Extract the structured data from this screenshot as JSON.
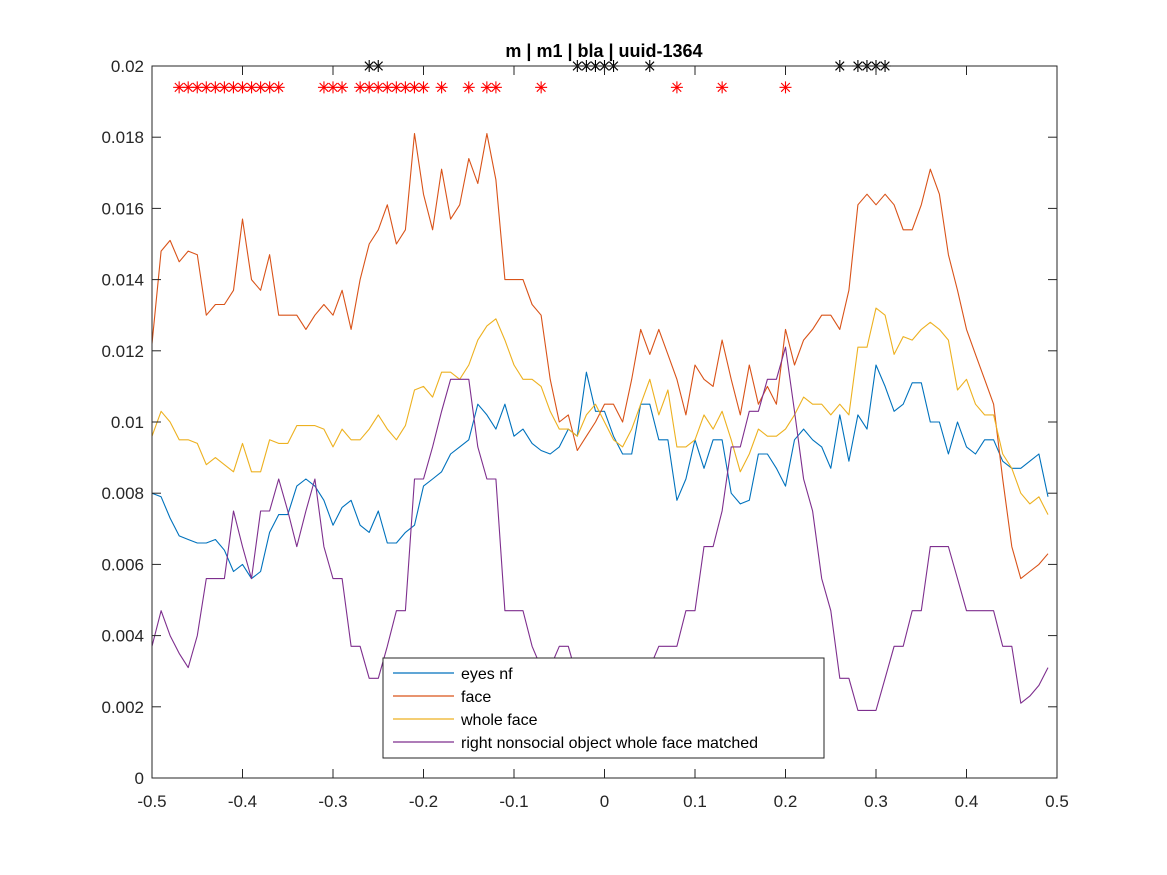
{
  "chart_data": {
    "type": "line",
    "title": "m | m1 | bla | uuid-1364",
    "xlabel": "",
    "ylabel": "",
    "xlim": [
      -0.5,
      0.5
    ],
    "ylim": [
      0,
      0.02
    ],
    "xticks": [
      -0.5,
      -0.4,
      -0.3,
      -0.2,
      -0.1,
      0,
      0.1,
      0.2,
      0.3,
      0.4,
      0.5
    ],
    "xtick_labels": [
      "-0.5",
      "-0.4",
      "-0.3",
      "-0.2",
      "-0.1",
      "0",
      "0.1",
      "0.2",
      "0.3",
      "0.4",
      "0.5"
    ],
    "yticks": [
      0,
      0.002,
      0.004,
      0.006,
      0.008,
      0.01,
      0.012,
      0.014,
      0.016,
      0.018,
      0.02
    ],
    "ytick_labels": [
      "0",
      "0.002",
      "0.004",
      "0.006",
      "0.008",
      "0.01",
      "0.012",
      "0.014",
      "0.016",
      "0.018",
      "0.02"
    ],
    "grid": false,
    "legend_position": "bottom-center",
    "x": [
      -0.5,
      -0.49,
      -0.48,
      -0.47,
      -0.46,
      -0.45,
      -0.44,
      -0.43,
      -0.42,
      -0.41,
      -0.4,
      -0.39,
      -0.38,
      -0.37,
      -0.36,
      -0.35,
      -0.34,
      -0.33,
      -0.32,
      -0.31,
      -0.3,
      -0.29,
      -0.28,
      -0.27,
      -0.26,
      -0.25,
      -0.24,
      -0.23,
      -0.22,
      -0.21,
      -0.2,
      -0.19,
      -0.18,
      -0.17,
      -0.16,
      -0.15,
      -0.14,
      -0.13,
      -0.12,
      -0.11,
      -0.1,
      -0.09,
      -0.08,
      -0.07,
      -0.06,
      -0.05,
      -0.04,
      -0.03,
      -0.02,
      -0.01,
      0,
      0.01,
      0.02,
      0.03,
      0.04,
      0.05,
      0.06,
      0.07,
      0.08,
      0.09,
      0.1,
      0.11,
      0.12,
      0.13,
      0.14,
      0.15,
      0.16,
      0.17,
      0.18,
      0.19,
      0.2,
      0.21,
      0.22,
      0.23,
      0.24,
      0.25,
      0.26,
      0.27,
      0.28,
      0.29,
      0.3,
      0.31,
      0.32,
      0.33,
      0.34,
      0.35,
      0.36,
      0.37,
      0.38,
      0.39,
      0.4,
      0.41,
      0.42,
      0.43,
      0.44,
      0.45,
      0.46,
      0.47,
      0.48,
      0.49
    ],
    "series": [
      {
        "name": "eyes nf",
        "color": "#0072BD",
        "values": [
          0.008,
          0.0079,
          0.0073,
          0.0068,
          0.0067,
          0.0066,
          0.0066,
          0.0067,
          0.0064,
          0.0058,
          0.006,
          0.0056,
          0.0058,
          0.0069,
          0.0074,
          0.0074,
          0.0082,
          0.0084,
          0.0082,
          0.0078,
          0.0071,
          0.0076,
          0.0078,
          0.0071,
          0.0069,
          0.0075,
          0.0066,
          0.0066,
          0.0069,
          0.0071,
          0.0082,
          0.0084,
          0.0086,
          0.0091,
          0.0093,
          0.0095,
          0.0105,
          0.0102,
          0.0098,
          0.0105,
          0.0096,
          0.0098,
          0.0094,
          0.0092,
          0.0091,
          0.0093,
          0.0098,
          0.0096,
          0.0114,
          0.0103,
          0.0103,
          0.0096,
          0.0091,
          0.0091,
          0.0105,
          0.0105,
          0.0095,
          0.0095,
          0.0078,
          0.0084,
          0.0095,
          0.0087,
          0.0095,
          0.0095,
          0.008,
          0.0077,
          0.0078,
          0.0091,
          0.0091,
          0.0087,
          0.0082,
          0.0095,
          0.0098,
          0.0095,
          0.0093,
          0.0087,
          0.0102,
          0.0089,
          0.0102,
          0.0098,
          0.0116,
          0.011,
          0.0103,
          0.0105,
          0.0111,
          0.0111,
          0.01,
          0.01,
          0.0091,
          0.01,
          0.0093,
          0.0091,
          0.0095,
          0.0095,
          0.0089,
          0.0087,
          0.0087,
          0.0089,
          0.0091,
          0.0079
        ]
      },
      {
        "name": "face",
        "color": "#D95319",
        "values": [
          0.0122,
          0.0148,
          0.0151,
          0.0145,
          0.0148,
          0.0147,
          0.013,
          0.0133,
          0.0133,
          0.0137,
          0.0157,
          0.014,
          0.0137,
          0.0147,
          0.013,
          0.013,
          0.013,
          0.0126,
          0.013,
          0.0133,
          0.013,
          0.0137,
          0.0126,
          0.014,
          0.015,
          0.0154,
          0.0161,
          0.015,
          0.0154,
          0.0181,
          0.0164,
          0.0154,
          0.0171,
          0.0157,
          0.0161,
          0.0174,
          0.0167,
          0.0181,
          0.0168,
          0.014,
          0.014,
          0.014,
          0.0133,
          0.013,
          0.0112,
          0.01,
          0.0102,
          0.0092,
          0.0096,
          0.01,
          0.0105,
          0.0105,
          0.01,
          0.0112,
          0.0126,
          0.0119,
          0.0126,
          0.0119,
          0.0112,
          0.0102,
          0.0116,
          0.0112,
          0.011,
          0.0123,
          0.0112,
          0.0102,
          0.0116,
          0.0105,
          0.011,
          0.0105,
          0.0126,
          0.0116,
          0.0123,
          0.0126,
          0.013,
          0.013,
          0.0126,
          0.0137,
          0.0161,
          0.0164,
          0.0161,
          0.0164,
          0.0161,
          0.0154,
          0.0154,
          0.0161,
          0.0171,
          0.0164,
          0.0147,
          0.0137,
          0.0126,
          0.0119,
          0.0112,
          0.0105,
          0.0084,
          0.0065,
          0.0056,
          0.0058,
          0.006,
          0.0063
        ]
      },
      {
        "name": "whole face",
        "color": "#EDB120",
        "values": [
          0.0096,
          0.0103,
          0.01,
          0.0095,
          0.0095,
          0.0094,
          0.0088,
          0.009,
          0.0088,
          0.0086,
          0.0094,
          0.0086,
          0.0086,
          0.0095,
          0.0094,
          0.0094,
          0.0099,
          0.0099,
          0.0099,
          0.0098,
          0.0093,
          0.0098,
          0.0095,
          0.0095,
          0.0098,
          0.0102,
          0.0098,
          0.0095,
          0.0099,
          0.0109,
          0.011,
          0.0107,
          0.0114,
          0.0114,
          0.0112,
          0.0116,
          0.0123,
          0.0127,
          0.0129,
          0.0123,
          0.0116,
          0.0112,
          0.0112,
          0.011,
          0.0103,
          0.0098,
          0.0098,
          0.0096,
          0.0102,
          0.0105,
          0.01,
          0.0095,
          0.0093,
          0.0098,
          0.0105,
          0.0112,
          0.0102,
          0.0109,
          0.0093,
          0.0093,
          0.0095,
          0.0102,
          0.0098,
          0.0103,
          0.0095,
          0.0086,
          0.0091,
          0.0098,
          0.0096,
          0.0096,
          0.0098,
          0.0102,
          0.0107,
          0.0105,
          0.0105,
          0.0102,
          0.0105,
          0.0102,
          0.0121,
          0.0121,
          0.0132,
          0.013,
          0.0119,
          0.0124,
          0.0123,
          0.0126,
          0.0128,
          0.0126,
          0.0123,
          0.0109,
          0.0112,
          0.0105,
          0.0102,
          0.0102,
          0.0091,
          0.0087,
          0.008,
          0.0077,
          0.0079,
          0.0074
        ]
      },
      {
        "name": "right nonsocial object whole face matched",
        "color": "#7E2F8E",
        "values": [
          0.0037,
          0.0047,
          0.004,
          0.0035,
          0.0031,
          0.004,
          0.0056,
          0.0056,
          0.0056,
          0.0075,
          0.0065,
          0.0056,
          0.0075,
          0.0075,
          0.0084,
          0.0075,
          0.0065,
          0.0075,
          0.0084,
          0.0065,
          0.0056,
          0.0056,
          0.0037,
          0.0037,
          0.0028,
          0.0028,
          0.0037,
          0.0047,
          0.0047,
          0.0084,
          0.0084,
          0.0093,
          0.0103,
          0.0112,
          0.0112,
          0.0112,
          0.0093,
          0.0084,
          0.0084,
          0.0047,
          0.0047,
          0.0047,
          0.0037,
          0.0031,
          0.0031,
          0.0037,
          0.0037,
          0.0028,
          0.0028,
          0.0028,
          0.0028,
          0.0028,
          0.0031,
          0.0031,
          0.0031,
          0.0031,
          0.0037,
          0.0037,
          0.0037,
          0.0047,
          0.0047,
          0.0065,
          0.0065,
          0.0075,
          0.0093,
          0.0093,
          0.0103,
          0.0103,
          0.0112,
          0.0112,
          0.0121,
          0.0103,
          0.0084,
          0.0075,
          0.0056,
          0.0047,
          0.0028,
          0.0028,
          0.0019,
          0.0019,
          0.0019,
          0.0028,
          0.0037,
          0.0037,
          0.0047,
          0.0047,
          0.0065,
          0.0065,
          0.0065,
          0.0056,
          0.0047,
          0.0047,
          0.0047,
          0.0047,
          0.0037,
          0.0037,
          0.0021,
          0.0023,
          0.0026,
          0.0031
        ]
      }
    ],
    "markers": [
      {
        "name": "black",
        "color": "#000000",
        "y": 0.02,
        "x": [
          -0.26,
          -0.25,
          -0.03,
          -0.02,
          -0.01,
          0.0,
          0.01,
          0.05,
          0.26,
          0.28,
          0.29,
          0.3,
          0.31
        ]
      },
      {
        "name": "red",
        "color": "#FF0000",
        "y": 0.0194,
        "x": [
          -0.47,
          -0.46,
          -0.45,
          -0.44,
          -0.43,
          -0.42,
          -0.41,
          -0.4,
          -0.39,
          -0.38,
          -0.37,
          -0.36,
          -0.31,
          -0.3,
          -0.29,
          -0.27,
          -0.26,
          -0.25,
          -0.24,
          -0.23,
          -0.22,
          -0.21,
          -0.2,
          -0.18,
          -0.15,
          -0.13,
          -0.12,
          -0.07,
          0.08,
          0.13,
          0.2
        ]
      }
    ]
  }
}
